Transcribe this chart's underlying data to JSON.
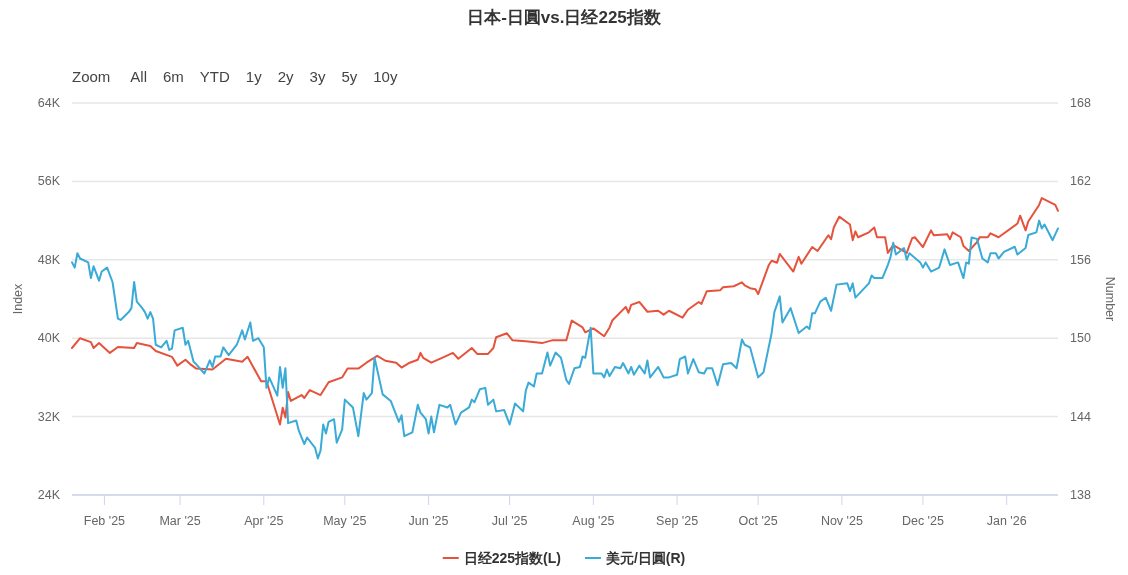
{
  "chart_data": {
    "type": "line",
    "title": "日本-日圓vs.日经225指数",
    "annotations": [
      "Zoom",
      "All",
      "6m",
      "YTD",
      "1y",
      "2y",
      "3y",
      "5y",
      "10y"
    ],
    "ylabel": "Index",
    "y2label": "Number",
    "xlim": [
      "2025-01-20",
      "2026-01-20"
    ],
    "xticks": [
      {
        "value": "2025-02-01",
        "label": "Feb '25"
      },
      {
        "value": "2025-03-01",
        "label": "Mar '25"
      },
      {
        "value": "2025-04-01",
        "label": "Apr '25"
      },
      {
        "value": "2025-05-01",
        "label": "May '25"
      },
      {
        "value": "2025-06-01",
        "label": "Jun '25"
      },
      {
        "value": "2025-07-01",
        "label": "Jul '25"
      },
      {
        "value": "2025-08-01",
        "label": "Aug '25"
      },
      {
        "value": "2025-09-01",
        "label": "Sep '25"
      },
      {
        "value": "2025-10-01",
        "label": "Oct '25"
      },
      {
        "value": "2025-11-01",
        "label": "Nov '25"
      },
      {
        "value": "2025-12-01",
        "label": "Dec '25"
      },
      {
        "value": "2026-01-01",
        "label": "Jan '26"
      }
    ],
    "ylim": [
      24000,
      64000
    ],
    "yticks": [
      {
        "value": 24000,
        "label": "24K"
      },
      {
        "value": 32000,
        "label": "32K"
      },
      {
        "value": 40000,
        "label": "40K"
      },
      {
        "value": 48000,
        "label": "48K"
      },
      {
        "value": 56000,
        "label": "56K"
      },
      {
        "value": 64000,
        "label": "64K"
      }
    ],
    "y2lim": [
      138,
      168
    ],
    "y2ticks": [
      138,
      144,
      150,
      156,
      162,
      168
    ],
    "grid": "y",
    "legend": "bottom",
    "marker": "none",
    "line_style": "solid",
    "series": [
      {
        "name": "日经225指数(L)",
        "color": "#e5533d",
        "axis": "y",
        "x": [
          "2025-01-20",
          "2025-01-23",
          "2025-01-27",
          "2025-01-28",
          "2025-01-30",
          "2025-02-03",
          "2025-02-06",
          "2025-02-12",
          "2025-02-13",
          "2025-02-18",
          "2025-02-20",
          "2025-02-26",
          "2025-02-28",
          "2025-03-03",
          "2025-03-05",
          "2025-03-07",
          "2025-03-13",
          "2025-03-18",
          "2025-03-24",
          "2025-03-26",
          "2025-03-31",
          "2025-04-02",
          "2025-04-07",
          "2025-04-08",
          "2025-04-09",
          "2025-04-10",
          "2025-04-11",
          "2025-04-15",
          "2025-04-16",
          "2025-04-18",
          "2025-04-22",
          "2025-04-25",
          "2025-04-30",
          "2025-05-02",
          "2025-05-06",
          "2025-05-09",
          "2025-05-13",
          "2025-05-16",
          "2025-05-20",
          "2025-05-22",
          "2025-05-25",
          "2025-05-28",
          "2025-05-29",
          "2025-05-30",
          "2025-06-02",
          "2025-06-06",
          "2025-06-10",
          "2025-06-12",
          "2025-06-17",
          "2025-06-19",
          "2025-06-23",
          "2025-06-25",
          "2025-06-26",
          "2025-06-30",
          "2025-07-02",
          "2025-07-07",
          "2025-07-13",
          "2025-07-17",
          "2025-07-22",
          "2025-07-24",
          "2025-07-28",
          "2025-07-29",
          "2025-08-01",
          "2025-08-05",
          "2025-08-07",
          "2025-08-08",
          "2025-08-13",
          "2025-08-14",
          "2025-08-15",
          "2025-08-18",
          "2025-08-21",
          "2025-08-25",
          "2025-08-27",
          "2025-08-29",
          "2025-09-03",
          "2025-09-05",
          "2025-09-09",
          "2025-09-10",
          "2025-09-12",
          "2025-09-17",
          "2025-09-18",
          "2025-09-22",
          "2025-09-25",
          "2025-09-26",
          "2025-09-28",
          "2025-09-30",
          "2025-10-01",
          "2025-10-05",
          "2025-10-06",
          "2025-10-08",
          "2025-10-09",
          "2025-10-14",
          "2025-10-16",
          "2025-10-17",
          "2025-10-21",
          "2025-10-23",
          "2025-10-27",
          "2025-10-28",
          "2025-10-29",
          "2025-10-31",
          "2025-11-04",
          "2025-11-05",
          "2025-11-06",
          "2025-11-07",
          "2025-11-11",
          "2025-11-13",
          "2025-11-14",
          "2025-11-17",
          "2025-11-18",
          "2025-11-20",
          "2025-11-25",
          "2025-11-27",
          "2025-11-28",
          "2025-12-01",
          "2025-12-04",
          "2025-12-05",
          "2025-12-10",
          "2025-12-11",
          "2025-12-12",
          "2025-12-15",
          "2025-12-16",
          "2025-12-18",
          "2025-12-21",
          "2025-12-22",
          "2025-12-25",
          "2025-12-26",
          "2025-12-29",
          "2026-01-05",
          "2026-01-06",
          "2026-01-08",
          "2026-01-09",
          "2026-01-13",
          "2026-01-14",
          "2026-01-19",
          "2026-01-20"
        ],
        "values": [
          39000,
          40000,
          39600,
          39000,
          39500,
          38500,
          39100,
          39000,
          39500,
          39200,
          38700,
          38100,
          37200,
          37800,
          37300,
          36900,
          36800,
          37900,
          37600,
          38100,
          35600,
          35600,
          31200,
          32900,
          31900,
          34500,
          33600,
          34200,
          33900,
          34700,
          34200,
          35500,
          36000,
          36900,
          36900,
          37500,
          38200,
          37700,
          37500,
          37000,
          37500,
          37800,
          38500,
          38000,
          37500,
          38000,
          38500,
          37900,
          39000,
          38400,
          38400,
          39000,
          40100,
          40500,
          39800,
          39700,
          39500,
          39800,
          39800,
          41800,
          41100,
          40600,
          41000,
          40200,
          41100,
          41800,
          43200,
          42600,
          43400,
          43700,
          42700,
          42800,
          42400,
          42800,
          42100,
          42900,
          43700,
          43500,
          44800,
          44900,
          45200,
          45300,
          45700,
          45400,
          45100,
          45000,
          44500,
          47500,
          47900,
          47700,
          48600,
          46800,
          48300,
          47600,
          49300,
          48900,
          50500,
          50100,
          51300,
          52400,
          51600,
          50000,
          50900,
          50300,
          50800,
          51300,
          50300,
          50300,
          48700,
          49500,
          48700,
          50200,
          50300,
          49300,
          51000,
          50500,
          50600,
          50100,
          50800,
          50300,
          49400,
          48900,
          49800,
          50300,
          50300,
          50700,
          50300,
          51700,
          52500,
          51000,
          51900,
          53600,
          54300,
          53600,
          53000
        ]
      },
      {
        "name": "美元/日圓(R)",
        "color": "#3aaad7",
        "axis": "y2",
        "x": [
          "2025-01-20",
          "2025-01-21",
          "2025-01-22",
          "2025-01-23",
          "2025-01-26",
          "2025-01-27",
          "2025-01-28",
          "2025-01-30",
          "2025-01-31",
          "2025-02-02",
          "2025-02-04",
          "2025-02-06",
          "2025-02-07",
          "2025-02-10",
          "2025-02-11",
          "2025-02-12",
          "2025-02-13",
          "2025-02-15",
          "2025-02-16",
          "2025-02-17",
          "2025-02-18",
          "2025-02-19",
          "2025-02-20",
          "2025-02-22",
          "2025-02-24",
          "2025-02-25",
          "2025-02-26",
          "2025-02-27",
          "2025-03-02",
          "2025-03-03",
          "2025-03-04",
          "2025-03-06",
          "2025-03-07",
          "2025-03-10",
          "2025-03-12",
          "2025-03-13",
          "2025-03-14",
          "2025-03-16",
          "2025-03-17",
          "2025-03-19",
          "2025-03-22",
          "2025-03-24",
          "2025-03-25",
          "2025-03-27",
          "2025-03-28",
          "2025-03-30",
          "2025-04-01",
          "2025-04-02",
          "2025-04-03",
          "2025-04-06",
          "2025-04-07",
          "2025-04-08",
          "2025-04-09",
          "2025-04-10",
          "2025-04-13",
          "2025-04-14",
          "2025-04-16",
          "2025-04-17",
          "2025-04-20",
          "2025-04-21",
          "2025-04-22",
          "2025-04-23",
          "2025-04-24",
          "2025-04-25",
          "2025-04-27",
          "2025-04-28",
          "2025-04-30",
          "2025-05-01",
          "2025-05-04",
          "2025-05-06",
          "2025-05-08",
          "2025-05-09",
          "2025-05-11",
          "2025-05-12",
          "2025-05-15",
          "2025-05-18",
          "2025-05-21",
          "2025-05-22",
          "2025-05-23",
          "2025-05-26",
          "2025-05-28",
          "2025-05-29",
          "2025-05-31",
          "2025-06-01",
          "2025-06-02",
          "2025-06-03",
          "2025-06-05",
          "2025-06-08",
          "2025-06-09",
          "2025-06-11",
          "2025-06-13",
          "2025-06-16",
          "2025-06-17",
          "2025-06-18",
          "2025-06-20",
          "2025-06-22",
          "2025-06-23",
          "2025-06-25",
          "2025-06-26",
          "2025-06-29",
          "2025-07-01",
          "2025-07-03",
          "2025-07-06",
          "2025-07-07",
          "2025-07-08",
          "2025-07-10",
          "2025-07-11",
          "2025-07-13",
          "2025-07-15",
          "2025-07-16",
          "2025-07-18",
          "2025-07-20",
          "2025-07-22",
          "2025-07-23",
          "2025-07-25",
          "2025-07-27",
          "2025-07-28",
          "2025-07-29",
          "2025-07-31",
          "2025-08-01",
          "2025-08-04",
          "2025-08-05",
          "2025-08-06",
          "2025-08-07",
          "2025-08-09",
          "2025-08-11",
          "2025-08-12",
          "2025-08-14",
          "2025-08-15",
          "2025-08-16",
          "2025-08-18",
          "2025-08-20",
          "2025-08-21",
          "2025-08-22",
          "2025-08-25",
          "2025-08-27",
          "2025-08-29",
          "2025-09-01",
          "2025-09-02",
          "2025-09-04",
          "2025-09-05",
          "2025-09-07",
          "2025-09-09",
          "2025-09-11",
          "2025-09-12",
          "2025-09-14",
          "2025-09-16",
          "2025-09-18",
          "2025-09-21",
          "2025-09-23",
          "2025-09-25",
          "2025-09-26",
          "2025-09-28",
          "2025-10-01",
          "2025-10-03",
          "2025-10-06",
          "2025-10-07",
          "2025-10-09",
          "2025-10-10",
          "2025-10-13",
          "2025-10-16",
          "2025-10-19",
          "2025-10-20",
          "2025-10-21",
          "2025-10-22",
          "2025-10-24",
          "2025-10-26",
          "2025-10-28",
          "2025-10-30",
          "2025-11-03",
          "2025-11-04",
          "2025-11-05",
          "2025-11-06",
          "2025-11-11",
          "2025-11-12",
          "2025-11-13",
          "2025-11-16",
          "2025-11-18",
          "2025-11-19",
          "2025-11-20",
          "2025-11-21",
          "2025-11-24",
          "2025-11-25",
          "2025-11-26",
          "2025-11-30",
          "2025-12-01",
          "2025-12-02",
          "2025-12-04",
          "2025-12-07",
          "2025-12-09",
          "2025-12-11",
          "2025-12-14",
          "2025-12-16",
          "2025-12-17",
          "2025-12-18",
          "2025-12-19",
          "2025-12-21",
          "2025-12-23",
          "2025-12-25",
          "2025-12-26",
          "2025-12-28",
          "2025-12-29",
          "2025-12-31",
          "2026-01-04",
          "2026-01-05",
          "2026-01-08",
          "2026-01-09",
          "2026-01-12",
          "2026-01-13",
          "2026-01-14",
          "2026-01-15",
          "2026-01-18",
          "2026-01-20"
        ],
        "values": [
          155.8,
          155.4,
          156.5,
          156.1,
          155.8,
          154.6,
          155.5,
          154.4,
          155.1,
          155.4,
          154.3,
          151.5,
          151.4,
          152.0,
          152.3,
          154.3,
          152.8,
          152.3,
          152.0,
          151.5,
          152.0,
          151.5,
          149.5,
          149.3,
          149.8,
          149.1,
          149.2,
          150.6,
          150.8,
          149.5,
          149.8,
          148.2,
          148.0,
          147.3,
          148.3,
          147.8,
          148.6,
          148.6,
          149.3,
          148.7,
          149.5,
          150.6,
          149.9,
          151.2,
          149.8,
          150.0,
          149.3,
          146.2,
          147.0,
          145.6,
          147.8,
          146.2,
          147.7,
          143.5,
          143.7,
          142.9,
          141.9,
          142.4,
          141.6,
          140.8,
          141.4,
          143.4,
          142.7,
          143.6,
          143.8,
          142.0,
          143.0,
          145.3,
          144.7,
          142.5,
          145.8,
          145.3,
          145.8,
          148.5,
          145.7,
          145.2,
          143.6,
          144.1,
          142.5,
          142.8,
          144.9,
          144.3,
          143.8,
          142.7,
          144.0,
          142.8,
          144.9,
          144.7,
          144.9,
          143.4,
          144.3,
          144.7,
          145.3,
          145.1,
          146.1,
          146.2,
          144.9,
          145.3,
          144.4,
          144.5,
          143.4,
          145.0,
          144.4,
          146.0,
          146.6,
          146.3,
          147.3,
          147.3,
          148.9,
          147.9,
          148.9,
          148.5,
          146.8,
          146.5,
          147.7,
          147.8,
          148.6,
          148.5,
          150.8,
          147.3,
          147.3,
          147.0,
          147.6,
          147.1,
          147.8,
          147.7,
          148.1,
          147.3,
          147.8,
          147.2,
          147.9,
          147.3,
          148.3,
          147.0,
          147.8,
          147.0,
          147.0,
          147.2,
          148.4,
          148.6,
          147.3,
          148.4,
          147.4,
          147.3,
          147.7,
          147.7,
          146.4,
          148.0,
          148.1,
          147.7,
          149.9,
          149.5,
          149.3,
          147.0,
          147.4,
          150.4,
          152.0,
          153.2,
          151.2,
          152.3,
          150.4,
          150.9,
          150.7,
          151.9,
          151.9,
          152.8,
          153.1,
          152.1,
          154.1,
          154.2,
          153.6,
          154.2,
          153.1,
          154.2,
          154.8,
          154.6,
          154.6,
          155.6,
          156.2,
          157.3,
          156.4,
          156.9,
          156.0,
          156.5,
          155.8,
          155.4,
          155.8,
          155.1,
          155.4,
          156.8,
          155.6,
          155.8,
          154.6,
          155.8,
          155.7,
          157.7,
          157.6,
          156.1,
          155.8,
          156.5,
          156.5,
          156.1,
          156.6,
          157.0,
          156.4,
          156.9,
          157.9,
          158.1,
          159.0,
          158.4,
          158.7,
          157.5,
          158.4
        ]
      }
    ]
  }
}
